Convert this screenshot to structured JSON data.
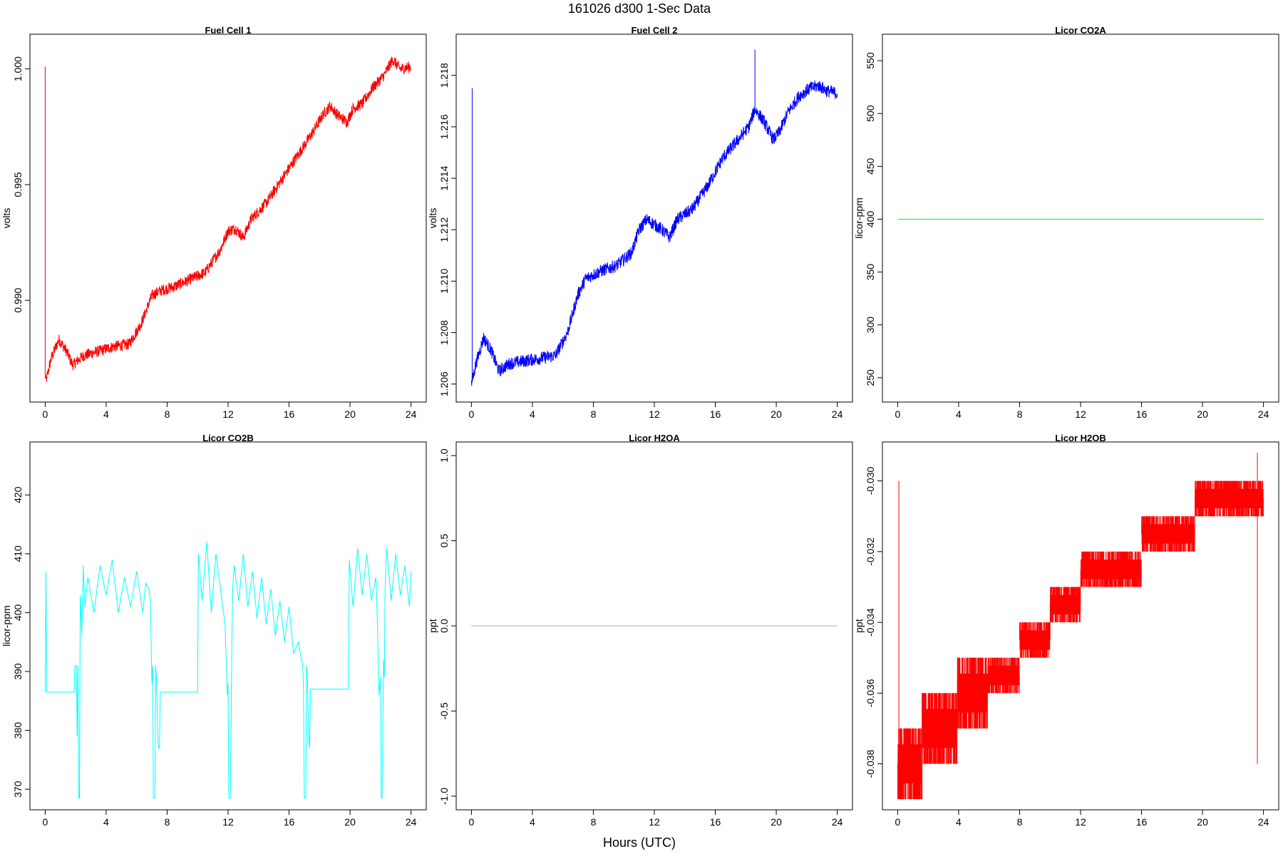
{
  "figure": {
    "title": "161026   d300   1-Sec Data",
    "xlabel": "Hours (UTC)"
  },
  "chart_data": [
    {
      "type": "line",
      "title": "Fuel Cell 1",
      "xlabel": "",
      "ylabel": "volts",
      "color": "#ff0000",
      "xlim": [
        -1,
        25
      ],
      "ylim": [
        0.9856,
        1.0015
      ],
      "x_ticks": [
        0,
        4,
        8,
        12,
        16,
        20,
        24
      ],
      "y_ticks": [
        0.99,
        0.995,
        1.0
      ],
      "y_tick_labels": [
        "0.990",
        "0.995",
        "1.000"
      ],
      "noise": 0.00025,
      "spikes": [
        {
          "x": 0.0,
          "y": 1.0001
        }
      ],
      "series": [
        {
          "x": [
            0,
            0.05,
            0.4,
            0.9,
            1.4,
            1.8,
            2.5,
            3.5,
            4.5,
            5.5,
            6.3,
            7.0,
            7.5,
            8.5,
            9.5,
            10.5,
            11.0,
            11.5,
            12.0,
            12.5,
            13.0,
            13.5,
            14.5,
            15.5,
            16.5,
            17.5,
            18.2,
            18.7,
            19.2,
            19.8,
            20.2,
            20.8,
            21.5,
            22.2,
            22.8,
            23.3,
            24.0
          ],
          "values": [
            0.9868,
            0.9865,
            0.9875,
            0.9883,
            0.9878,
            0.9872,
            0.9876,
            0.9878,
            0.988,
            0.9881,
            0.989,
            0.9902,
            0.9904,
            0.9906,
            0.9909,
            0.9912,
            0.9917,
            0.9922,
            0.993,
            0.9931,
            0.9927,
            0.9935,
            0.9942,
            0.9952,
            0.9962,
            0.9972,
            0.998,
            0.9984,
            0.998,
            0.9977,
            0.9983,
            0.9985,
            0.9992,
            0.9997,
            1.0004,
            1.0,
            1.0001
          ]
        }
      ]
    },
    {
      "type": "line",
      "title": "Fuel Cell 2",
      "xlabel": "",
      "ylabel": "volts",
      "color": "#0000ff",
      "xlim": [
        -1,
        25
      ],
      "ylim": [
        1.2053,
        1.2196
      ],
      "x_ticks": [
        0,
        4,
        8,
        12,
        16,
        20,
        24
      ],
      "y_ticks": [
        1.206,
        1.208,
        1.21,
        1.212,
        1.214,
        1.216,
        1.218
      ],
      "y_tick_labels": [
        "1.206",
        "1.208",
        "1.210",
        "1.212",
        "1.214",
        "1.216",
        "1.218"
      ],
      "noise": 0.00025,
      "spikes": [
        {
          "x": 0.05,
          "y": 1.2175
        },
        {
          "x": 18.6,
          "y": 1.219
        }
      ],
      "series": [
        {
          "x": [
            0,
            0.3,
            0.8,
            1.3,
            1.8,
            2.5,
            3.5,
            4.5,
            5.5,
            6.3,
            7.0,
            7.5,
            8.5,
            9.5,
            10.5,
            11.0,
            11.5,
            12.0,
            12.5,
            13.0,
            13.5,
            14.5,
            15.5,
            16.5,
            17.5,
            18.2,
            18.6,
            19.2,
            19.8,
            20.2,
            20.8,
            21.5,
            22.2,
            22.8,
            23.3,
            24.0
          ],
          "values": [
            1.206,
            1.2068,
            1.2078,
            1.2073,
            1.2065,
            1.2068,
            1.2069,
            1.207,
            1.2071,
            1.208,
            1.2095,
            1.2101,
            1.2104,
            1.2106,
            1.2111,
            1.212,
            1.2124,
            1.2122,
            1.212,
            1.2117,
            1.2124,
            1.2128,
            1.2137,
            1.2148,
            1.2155,
            1.216,
            1.2167,
            1.2162,
            1.2155,
            1.2158,
            1.2166,
            1.2172,
            1.2175,
            1.2176,
            1.2174,
            1.2173
          ]
        }
      ]
    },
    {
      "type": "line",
      "title": "Licor CO2A",
      "xlabel": "",
      "ylabel": "licor-ppm",
      "color": "#00ff00",
      "xlim": [
        -1,
        25
      ],
      "ylim": [
        227,
        575
      ],
      "x_ticks": [
        0,
        4,
        8,
        12,
        16,
        20,
        24
      ],
      "y_ticks": [
        250,
        300,
        350,
        400,
        450,
        500,
        550
      ],
      "y_tick_labels": [
        "250",
        "300",
        "350",
        "400",
        "450",
        "500",
        "550"
      ],
      "noise": 0,
      "spikes": [],
      "series": [
        {
          "x": [
            0,
            24
          ],
          "values": [
            400,
            400
          ]
        }
      ]
    },
    {
      "type": "line",
      "title": "Licor CO2B",
      "xlabel": "",
      "ylabel": "licor-ppm",
      "color": "#00ffff",
      "xlim": [
        -1,
        25
      ],
      "ylim": [
        366.5,
        429
      ],
      "x_ticks": [
        0,
        4,
        8,
        12,
        16,
        20,
        24
      ],
      "y_ticks": [
        370,
        380,
        390,
        400,
        410,
        420
      ],
      "y_tick_labels": [
        "370",
        "380",
        "390",
        "400",
        "410",
        "420"
      ],
      "noise": 0,
      "spikes": [],
      "series": [
        {
          "x": [
            0,
            0.05,
            0.1,
            1.9,
            1.95,
            2.05,
            2.1,
            2.15,
            2.2,
            2.25,
            2.3,
            2.4,
            2.5,
            2.6,
            2.8,
            3.2,
            3.6,
            4.0,
            4.4,
            4.8,
            5.2,
            5.6,
            6.0,
            6.4,
            6.6,
            6.8,
            6.9,
            7.0,
            7.05,
            7.1,
            7.2,
            7.25,
            7.3,
            7.4,
            7.45,
            7.5,
            7.55,
            7.6,
            8.0,
            10.0,
            10.05,
            10.3,
            10.6,
            10.9,
            11.2,
            11.5,
            11.8,
            11.95,
            12.0,
            12.05,
            12.15,
            12.25,
            12.3,
            12.4,
            12.7,
            13.0,
            13.3,
            13.6,
            13.9,
            14.2,
            14.5,
            14.8,
            15.1,
            15.4,
            15.7,
            16.0,
            16.3,
            16.6,
            16.9,
            16.95,
            17.0,
            17.1,
            17.15,
            17.2,
            17.3,
            17.35,
            17.4,
            18.0,
            19.9,
            19.95,
            20.2,
            20.5,
            20.8,
            21.1,
            21.4,
            21.7,
            21.8,
            21.9,
            22.0,
            22.05,
            22.1,
            22.2,
            22.25,
            22.3,
            22.4,
            22.7,
            23.0,
            23.3,
            23.6,
            23.9,
            24.0
          ],
          "values": [
            386.5,
            407,
            386.5,
            386.5,
            391,
            391,
            379,
            391,
            368.5,
            368.5,
            403,
            396,
            408,
            401,
            406,
            400,
            408,
            403,
            409,
            400,
            406,
            401,
            407,
            400,
            405,
            404,
            402,
            388,
            391,
            368.5,
            368.5,
            391,
            389,
            378,
            377,
            377,
            386.5,
            386.5,
            386.5,
            386.5,
            410,
            402,
            412,
            400,
            410,
            404,
            398,
            386,
            388,
            368.5,
            368.5,
            395,
            404,
            408,
            402,
            410,
            401,
            407,
            399,
            406,
            398,
            404,
            396,
            402,
            395,
            401,
            393,
            395,
            391,
            387,
            368.5,
            368.5,
            391,
            389,
            378,
            377,
            387,
            387,
            387,
            409,
            401,
            411,
            403,
            410,
            402,
            406,
            398,
            386,
            389,
            368.5,
            368.5,
            392,
            389,
            404,
            411,
            402,
            410,
            403,
            408,
            401,
            407
          ]
        }
      ]
    },
    {
      "type": "line",
      "title": "Licor H2OA",
      "xlabel": "",
      "ylabel": "ppt",
      "color": "#dd88dd",
      "xlim": [
        -1,
        25
      ],
      "ylim": [
        -1.08,
        1.08
      ],
      "x_ticks": [
        0,
        4,
        8,
        12,
        16,
        20,
        24
      ],
      "y_ticks": [
        -1.0,
        -0.5,
        0.0,
        0.5,
        1.0
      ],
      "y_tick_labels": [
        "-1.0",
        "-0.5",
        "0.0",
        "0.5",
        "1.0"
      ],
      "noise": 0,
      "spikes": [],
      "series": [
        {
          "x": [
            0,
            24
          ],
          "values": [
            0,
            0
          ]
        }
      ]
    },
    {
      "type": "line",
      "title": "Licor H2OB",
      "xlabel": "",
      "ylabel": "ppt",
      "color": "#ff0000",
      "xlim": [
        -1,
        25
      ],
      "ylim": [
        -0.0393,
        -0.0289
      ],
      "x_ticks": [
        0,
        4,
        8,
        12,
        16,
        20,
        24
      ],
      "y_ticks": [
        -0.038,
        -0.036,
        -0.034,
        -0.032,
        -0.03
      ],
      "y_tick_labels": [
        "-0.038",
        "-0.036",
        "-0.034",
        "-0.032",
        "-0.030"
      ],
      "noise": 0,
      "spikes": [
        {
          "x": 0.08,
          "y": -0.03
        },
        {
          "x": 23.6,
          "y": -0.0292
        }
      ],
      "steps": [
        {
          "x0": 0.0,
          "x1": 1.6,
          "level": -0.038,
          "low": -0.039,
          "high": -0.037
        },
        {
          "x0": 1.6,
          "x1": 3.9,
          "level": -0.037,
          "low": -0.038,
          "high": -0.036
        },
        {
          "x0": 3.9,
          "x1": 5.9,
          "level": -0.036,
          "low": -0.037,
          "high": -0.035
        },
        {
          "x0": 5.9,
          "x1": 8.0,
          "level": -0.0355,
          "low": -0.036,
          "high": -0.035
        },
        {
          "x0": 8.0,
          "x1": 10.0,
          "level": -0.0345,
          "low": -0.035,
          "high": -0.034
        },
        {
          "x0": 10.0,
          "x1": 12.0,
          "level": -0.0335,
          "low": -0.034,
          "high": -0.033
        },
        {
          "x0": 12.0,
          "x1": 16.0,
          "level": -0.0325,
          "low": -0.033,
          "high": -0.032
        },
        {
          "x0": 16.0,
          "x1": 19.5,
          "level": -0.0315,
          "low": -0.032,
          "high": -0.031
        },
        {
          "x0": 19.5,
          "x1": 24.0,
          "level": -0.0305,
          "low": -0.031,
          "high": -0.03
        }
      ]
    }
  ]
}
